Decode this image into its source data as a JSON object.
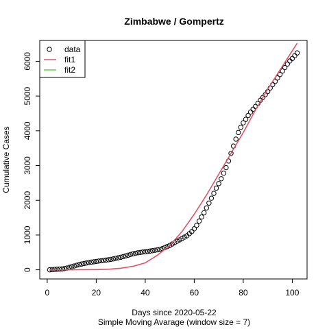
{
  "chart_data": {
    "type": "scatter",
    "title": "Zimbabwe / Gompertz",
    "x_label": "Days since 2020-05-22",
    "subtitle": "Simple Moving Avarage (window size = 7)",
    "y_label": "Cumulative Cases",
    "xlim": [
      -3.04,
      106.04
    ],
    "ylim": [
      -264,
      6600
    ],
    "xticks": [
      0,
      20,
      40,
      60,
      80,
      100
    ],
    "yticks": [
      0,
      1000,
      2000,
      3000,
      4000,
      5000,
      6000
    ],
    "legend": "top-left",
    "series": [
      {
        "name": "data",
        "color": "#000000",
        "mode": "points",
        "x": [
          1,
          2,
          3,
          4,
          5,
          6,
          7,
          8,
          9,
          10,
          11,
          12,
          13,
          14,
          15,
          16,
          17,
          18,
          19,
          20,
          21,
          22,
          23,
          24,
          25,
          26,
          27,
          28,
          29,
          30,
          31,
          32,
          33,
          34,
          35,
          36,
          37,
          38,
          39,
          40,
          41,
          42,
          43,
          44,
          45,
          46,
          47,
          48,
          49,
          50,
          51,
          52,
          53,
          54,
          55,
          56,
          57,
          58,
          59,
          60,
          61,
          62,
          63,
          64,
          65,
          66,
          67,
          68,
          69,
          70,
          71,
          72,
          73,
          74,
          75,
          76,
          77,
          78,
          79,
          80,
          81,
          82,
          83,
          84,
          85,
          86,
          87,
          88,
          89,
          90,
          91,
          92,
          93,
          94,
          95,
          96,
          97,
          98,
          99,
          100,
          101,
          102
        ],
        "values": [
          0,
          5,
          10,
          15,
          20,
          25,
          35,
          50,
          70,
          90,
          110,
          130,
          150,
          165,
          180,
          195,
          210,
          220,
          230,
          240,
          250,
          260,
          270,
          280,
          290,
          300,
          315,
          330,
          345,
          360,
          380,
          400,
          420,
          440,
          460,
          475,
          490,
          500,
          510,
          520,
          530,
          540,
          550,
          560,
          575,
          590,
          610,
          640,
          670,
          700,
          740,
          780,
          820,
          860,
          900,
          940,
          980,
          1040,
          1100,
          1180,
          1280,
          1400,
          1520,
          1640,
          1780,
          1920,
          2060,
          2200,
          2350,
          2480,
          2620,
          2780,
          2940,
          3130,
          3350,
          3560,
          3760,
          3950,
          4100,
          4230,
          4330,
          4440,
          4540,
          4620,
          4700,
          4790,
          4880,
          4960,
          5040,
          5130,
          5230,
          5330,
          5420,
          5520,
          5620,
          5720,
          5820,
          5920,
          6010,
          6080,
          6160,
          6240
        ]
      },
      {
        "name": "fit1",
        "color": "#DF536B",
        "mode": "line",
        "x": [
          1,
          10,
          20,
          25,
          30,
          35,
          40,
          45,
          50,
          55,
          60,
          65,
          70,
          75,
          80,
          85,
          90,
          95,
          100,
          102
        ],
        "values": [
          0,
          0,
          5,
          15,
          45,
          100,
          200,
          420,
          700,
          1100,
          1600,
          2150,
          2750,
          3350,
          3950,
          4600,
          5200,
          5750,
          6300,
          6520
        ]
      },
      {
        "name": "fit2",
        "color": "#61D04F",
        "mode": "line",
        "x": [],
        "values": []
      }
    ]
  }
}
